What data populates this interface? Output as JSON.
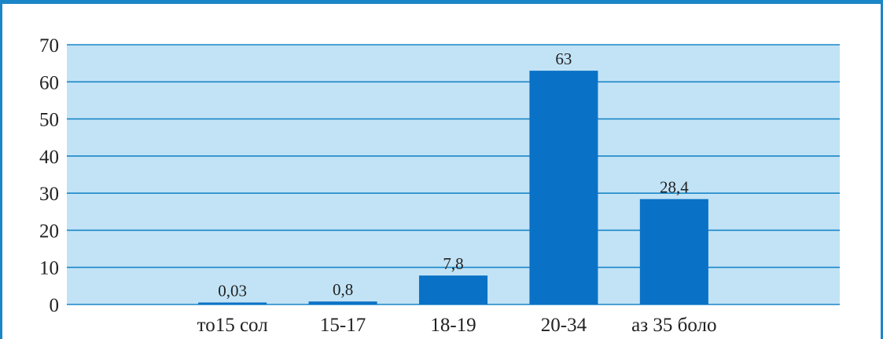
{
  "chart_data": {
    "type": "bar",
    "categories": [
      "",
      "то15 сол",
      "15-17",
      "18-19",
      "20-34",
      "аз 35 боло",
      ""
    ],
    "values": [
      null,
      0.03,
      0.8,
      7.8,
      63,
      28.4,
      null
    ],
    "data_labels": [
      "",
      "0,03",
      "0,8",
      "7,8",
      "63",
      "28,4",
      ""
    ],
    "yticks": [
      0,
      10,
      20,
      30,
      40,
      50,
      60,
      70
    ],
    "ylim": [
      0,
      70
    ],
    "grid": true,
    "colors": {
      "bar": "#0a72c6",
      "plot_background": "#c2e3f6",
      "gridline": "#1a86c7",
      "frame": "#1a86c7"
    }
  }
}
